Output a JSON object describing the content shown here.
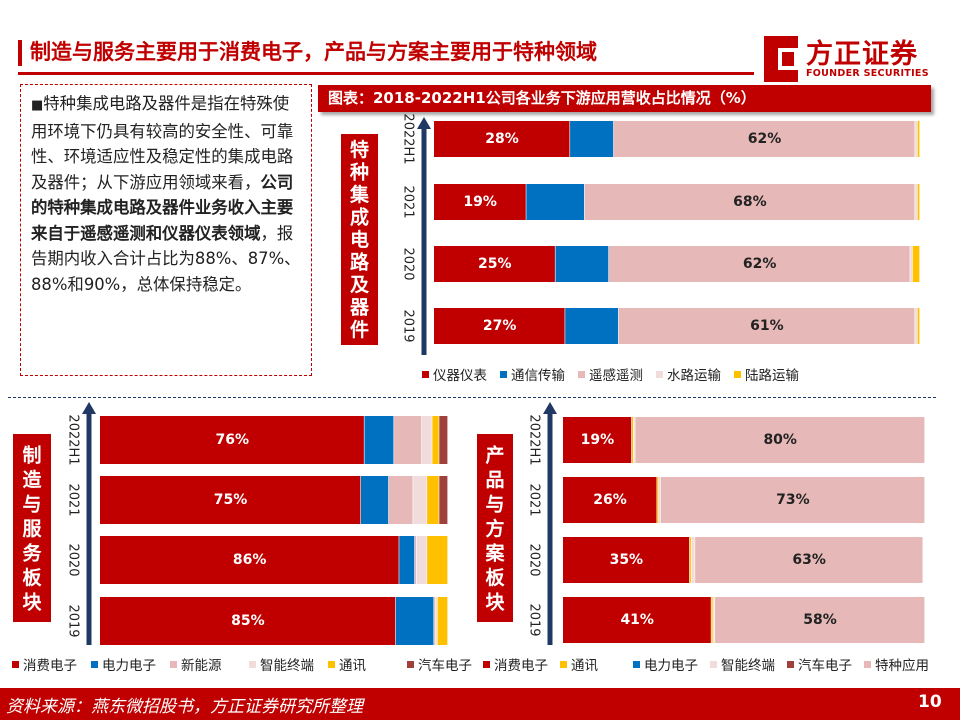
{
  "page": {
    "title": "制造与服务主要用于消费电子，产品与方案主要用于特种领域",
    "logo_cn": "方正证券",
    "logo_en": "FOUNDER SECURITIES",
    "footer_source": "资料来源：燕东微招股书，方正证券研究所整理",
    "page_number": "10"
  },
  "text_box": {
    "bullet": "■",
    "part1": "特种集成电路及器件是指在特殊使用环境下仍具有较高的安全性、可靠性、环境适应性及稳定性的集成电路及器件；从下游应用领域来看，",
    "part2_bold": "公司的特种集成电路及器件业务收入主要来自于遥感遥测和仪器仪表领域",
    "part3": "，报告期内收入合计占比为88%、87%、88%和90%，总体保持稳定。"
  },
  "chart_title": "图表：2018-2022H1公司各业务下游应用营收占比情况（%）",
  "chart_data": [
    {
      "type": "bar",
      "stacked": true,
      "orientation": "horizontal",
      "segment_label": "特种集成电路及器件",
      "categories": [
        "2022H1",
        "2021",
        "2020",
        "2019"
      ],
      "series": [
        {
          "name": "仪器仪表",
          "color": "#c00000",
          "values": [
            28,
            19,
            25,
            27
          ],
          "labels": [
            "28%",
            "19%",
            "25%",
            "27%"
          ]
        },
        {
          "name": "通信传输",
          "color": "#0070c0",
          "values": [
            9,
            12,
            11,
            11
          ],
          "labels": [
            "",
            "",
            "",
            ""
          ]
        },
        {
          "name": "遥感遥测",
          "color": "#e6b9b8",
          "values": [
            62,
            68,
            62,
            61
          ],
          "labels": [
            "62%",
            "68%",
            "62%",
            "61%"
          ]
        },
        {
          "name": "水路运输",
          "color": "#f2dcdb",
          "values": [
            0.5,
            0.5,
            0.5,
            0.5
          ],
          "labels": [
            "",
            "",
            "",
            ""
          ]
        },
        {
          "name": "陆路运输",
          "color": "#ffc000",
          "values": [
            0.5,
            0.5,
            1.5,
            0.5
          ],
          "labels": [
            "",
            "",
            "",
            ""
          ]
        }
      ],
      "xlim": [
        0,
        100
      ]
    },
    {
      "type": "bar",
      "stacked": true,
      "orientation": "horizontal",
      "segment_label": "制造与服务板块",
      "categories": [
        "2022H1",
        "2021",
        "2020",
        "2019"
      ],
      "series": [
        {
          "name": "消费电子",
          "color": "#c00000",
          "values": [
            76,
            75,
            86,
            85
          ],
          "labels": [
            "76%",
            "75%",
            "86%",
            "85%"
          ]
        },
        {
          "name": "电力电子",
          "color": "#0070c0",
          "values": [
            8.5,
            8,
            4.5,
            11
          ],
          "labels": [
            "",
            "",
            "",
            ""
          ]
        },
        {
          "name": "新能源",
          "color": "#e6b9b8",
          "values": [
            8,
            7,
            0.5,
            0.5
          ],
          "labels": [
            "",
            "",
            "",
            ""
          ]
        },
        {
          "name": "智能终端",
          "color": "#f2dcdb",
          "values": [
            3,
            4,
            3,
            0.5
          ],
          "labels": [
            "",
            "",
            "",
            ""
          ]
        },
        {
          "name": "通讯",
          "color": "#ffc000",
          "values": [
            2,
            3.5,
            6,
            3
          ],
          "labels": [
            "",
            "",
            "",
            ""
          ]
        },
        {
          "name": "汽车电子",
          "color": "#a0403c",
          "values": [
            2.5,
            2.5,
            0,
            0
          ],
          "labels": [
            "",
            "",
            "",
            ""
          ]
        }
      ],
      "xlim": [
        0,
        100
      ]
    },
    {
      "type": "bar",
      "stacked": true,
      "orientation": "horizontal",
      "segment_label": "产品与方案板块",
      "categories": [
        "2022H1",
        "2021",
        "2020",
        "2019"
      ],
      "series": [
        {
          "name": "消费电子",
          "color": "#c00000",
          "values": [
            19,
            26,
            35,
            41
          ],
          "labels": [
            "19%",
            "26%",
            "35%",
            "41%"
          ]
        },
        {
          "name": "通讯",
          "color": "#ffc000",
          "values": [
            0.5,
            0.5,
            0.5,
            0.5
          ],
          "labels": [
            "",
            "",
            "",
            ""
          ]
        },
        {
          "name": "电力电子",
          "color": "#0070c0",
          "values": [
            0,
            0,
            0,
            0
          ],
          "labels": [
            "",
            "",
            "",
            ""
          ]
        },
        {
          "name": "智能终端",
          "color": "#f2dcdb",
          "values": [
            0.5,
            0.5,
            1,
            0.5
          ],
          "labels": [
            "",
            "",
            "",
            ""
          ]
        },
        {
          "name": "汽车电子",
          "color": "#a0403c",
          "values": [
            0,
            0,
            0,
            0
          ],
          "labels": [
            "",
            "",
            "",
            ""
          ]
        },
        {
          "name": "特种应用",
          "color": "#e6b9b8",
          "values": [
            80,
            73,
            63,
            58
          ],
          "labels": [
            "80%",
            "73%",
            "63%",
            "58%"
          ]
        }
      ],
      "xlim": [
        0,
        100
      ]
    }
  ]
}
